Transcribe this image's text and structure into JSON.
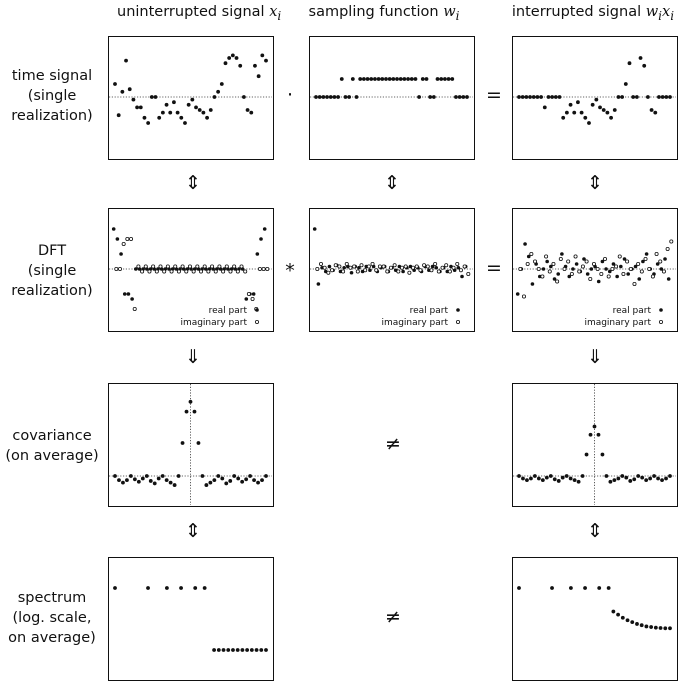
{
  "columns": {
    "col1": {
      "label": "uninterrupted signal",
      "math": "x",
      "sub": "i"
    },
    "col2": {
      "label": "sampling function",
      "math": "w",
      "sub": "i"
    },
    "col3": {
      "label": "interrupted signal",
      "math": "w",
      "sub": "i",
      "math2": "x",
      "sub2": "i"
    }
  },
  "rows": {
    "time": [
      "time signal",
      "(single",
      "realization)"
    ],
    "dft": [
      "DFT",
      "(single",
      "realization)"
    ],
    "cov": [
      "covariance",
      "(on average)"
    ],
    "spec": [
      "spectrum",
      "(log. scale,",
      "on average)"
    ]
  },
  "operators": {
    "dot": "·",
    "equals": "=",
    "conv": "*",
    "neq": "≠"
  },
  "arrows": {
    "both": "⇕",
    "down": "⇓"
  },
  "legend": {
    "real": "real part",
    "imag": "imaginary part"
  },
  "plots": {
    "x_time": [
      0.5,
      -0.7,
      0.2,
      1.4,
      0.3,
      -0.1,
      -0.4,
      -0.4,
      -0.8,
      -1.0,
      0.0,
      0.0,
      -0.8,
      -0.6,
      -0.3,
      -0.6,
      -0.2,
      -0.6,
      -0.8,
      -1.0,
      -0.3,
      -0.1,
      -0.4,
      -0.5,
      -0.6,
      -0.8,
      -0.5,
      0.0,
      0.2,
      0.5,
      1.3,
      1.5,
      1.6,
      1.5,
      1.2,
      0.0,
      -0.5,
      -0.6,
      1.2,
      0.8,
      1.6,
      1.4
    ],
    "w_time": [
      0,
      0,
      0,
      0,
      0,
      0,
      0,
      1,
      0,
      0,
      1,
      0,
      1,
      1,
      1,
      1,
      1,
      1,
      1,
      1,
      1,
      1,
      1,
      1,
      1,
      1,
      1,
      1,
      0,
      1,
      1,
      0,
      0,
      1,
      1,
      1,
      1,
      1,
      0,
      0,
      0,
      0
    ],
    "dft_x_real": [
      1.6,
      1.2,
      0.6,
      -1.0,
      -1.0,
      -1.2,
      0.0,
      0.0,
      0.0,
      0.0,
      0.0,
      0.0,
      0.0,
      0.0,
      0.0,
      0.0,
      0.0,
      0.0,
      0.0,
      0.0,
      0.0,
      0.0,
      0.0,
      0.0,
      0.0,
      0.0,
      0.0,
      0.0,
      0.0,
      0.0,
      0.0,
      0.0,
      0.0,
      0.0,
      0.0,
      0.0,
      -1.2,
      -1.0,
      -1.0,
      0.6,
      1.2,
      1.6
    ],
    "dft_x_imag": [
      0.0,
      0.0,
      1.0,
      1.2,
      1.2,
      -1.6,
      0.1,
      -0.1,
      0.1,
      -0.1,
      0.1,
      -0.1,
      0.1,
      -0.1,
      0.1,
      -0.1,
      0.1,
      -0.1,
      0.1,
      -0.1,
      0.1,
      -0.1,
      0.1,
      -0.1,
      0.1,
      -0.1,
      0.1,
      -0.1,
      0.1,
      -0.1,
      0.1,
      -0.1,
      0.1,
      -0.1,
      0.1,
      -0.1,
      -1.0,
      -1.2,
      -1.6,
      0.0,
      0.0,
      0.0
    ],
    "dft_w_real": [
      1.6,
      -0.6,
      0.05,
      -0.1,
      0.1,
      -0.05,
      0.15,
      -0.1,
      0.05,
      0.1,
      -0.15,
      0.1,
      0.05,
      -0.1,
      0.1,
      -0.05,
      0.1,
      -0.1,
      0.05,
      0.1,
      -0.1,
      0.05,
      -0.05,
      0.1,
      -0.1,
      0.05,
      0.1,
      -0.05,
      0.05,
      -0.1,
      0.1,
      -0.05,
      0.1,
      0.05,
      -0.1,
      0.05,
      -0.1,
      0.1,
      -0.05,
      0.05,
      -0.3,
      0.1
    ],
    "dft_w_imag": [
      0.0,
      0.2,
      0.05,
      -0.15,
      -0.05,
      0.15,
      0.1,
      -0.1,
      0.2,
      0.05,
      0.1,
      -0.1,
      0.15,
      -0.05,
      0.1,
      0.2,
      -0.05,
      0.1,
      0.1,
      -0.1,
      0.05,
      0.15,
      -0.1,
      0.05,
      0.1,
      -0.15,
      0.05,
      0.1,
      -0.05,
      0.15,
      0.1,
      -0.05,
      0.2,
      -0.1,
      0.05,
      0.15,
      -0.1,
      0.05,
      0.2,
      -0.05,
      0.1,
      -0.2
    ],
    "dft_wx_real": [
      -1.0,
      0.0,
      1.0,
      0.5,
      -0.6,
      0.2,
      -0.3,
      0.0,
      0.3,
      0.1,
      -0.4,
      -0.2,
      0.6,
      0.1,
      -0.3,
      0.0,
      0.2,
      -0.1,
      0.4,
      -0.2,
      0.0,
      0.1,
      -0.5,
      0.3,
      0.0,
      -0.1,
      0.2,
      -0.3,
      0.1,
      0.4,
      -0.2,
      0.0,
      0.1,
      -0.4,
      0.3,
      0.6,
      0.0,
      -0.2,
      0.2,
      0.0,
      0.4,
      -0.4
    ],
    "dft_wx_imag": [
      0.0,
      -1.1,
      0.2,
      0.6,
      0.3,
      0.0,
      -0.3,
      0.5,
      -0.1,
      0.2,
      -0.5,
      0.4,
      0.0,
      0.3,
      -0.2,
      0.5,
      -0.1,
      0.1,
      0.3,
      -0.4,
      0.2,
      0.0,
      -0.2,
      0.4,
      -0.3,
      0.0,
      0.1,
      0.5,
      -0.2,
      0.3,
      0.0,
      -0.6,
      0.2,
      -0.1,
      0.4,
      0.0,
      -0.3,
      0.6,
      0.3,
      -0.1,
      0.8,
      1.1
    ],
    "cov_x": [
      0.0,
      -0.25,
      -0.4,
      -0.25,
      0.0,
      -0.2,
      -0.35,
      -0.15,
      0.0,
      -0.3,
      -0.45,
      -0.15,
      0.0,
      -0.25,
      -0.4,
      -0.55,
      0.0,
      2.0,
      3.9,
      4.5,
      3.9,
      2.0,
      0.0,
      -0.55,
      -0.4,
      -0.25,
      0.0,
      -0.15,
      -0.45,
      -0.3,
      0.0,
      -0.15,
      -0.35,
      -0.2,
      0.0,
      -0.25,
      -0.4,
      -0.25,
      0.0
    ],
    "cov_wx": [
      0.0,
      -0.15,
      -0.25,
      -0.15,
      0.0,
      -0.15,
      -0.25,
      -0.1,
      0.0,
      -0.2,
      -0.3,
      -0.1,
      0.0,
      -0.15,
      -0.25,
      -0.35,
      0.0,
      1.3,
      2.5,
      3.0,
      2.5,
      1.3,
      0.0,
      -0.35,
      -0.25,
      -0.15,
      0.0,
      -0.1,
      -0.3,
      -0.2,
      0.0,
      -0.1,
      -0.25,
      -0.15,
      0.0,
      -0.15,
      -0.25,
      -0.15,
      0.0
    ],
    "spec_x": [
      [
        0,
        1.0
      ],
      [
        7,
        1.0
      ],
      [
        11,
        1.0
      ],
      [
        14,
        1.0
      ],
      [
        17,
        1.0
      ],
      [
        19,
        1.0
      ],
      [
        21,
        0.0
      ],
      [
        22,
        0.0
      ],
      [
        23,
        0.0
      ],
      [
        24,
        0.0
      ],
      [
        25,
        0.0
      ],
      [
        26,
        0.0
      ],
      [
        27,
        0.0
      ],
      [
        28,
        0.0
      ],
      [
        29,
        0.0
      ],
      [
        30,
        0.0
      ],
      [
        31,
        0.0
      ],
      [
        32,
        0.0
      ]
    ],
    "spec_wx": [
      [
        0,
        1.0
      ],
      [
        7,
        1.0
      ],
      [
        11,
        1.0
      ],
      [
        14,
        1.0
      ],
      [
        17,
        1.0
      ],
      [
        19,
        1.0
      ],
      [
        20,
        0.62
      ],
      [
        21,
        0.57
      ],
      [
        22,
        0.52
      ],
      [
        23,
        0.48
      ],
      [
        24,
        0.45
      ],
      [
        25,
        0.42
      ],
      [
        26,
        0.4
      ],
      [
        27,
        0.38
      ],
      [
        28,
        0.37
      ],
      [
        29,
        0.36
      ],
      [
        30,
        0.355
      ],
      [
        31,
        0.35
      ],
      [
        32,
        0.35
      ]
    ]
  }
}
